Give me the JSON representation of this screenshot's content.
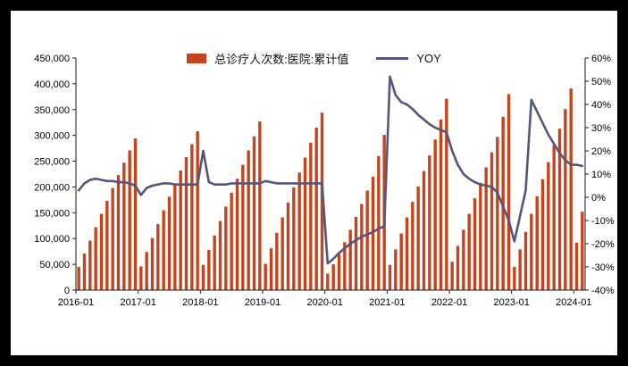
{
  "legend": {
    "bar_label": "总诊疗人次数:医院:累计值",
    "line_label": "YOY"
  },
  "colors": {
    "background": "#000000",
    "plot_background": "#FFFFFF",
    "bar": "#C5441D",
    "line": "#54567E",
    "axis": "#1A1A1A"
  },
  "chart_data": {
    "type": "bar+line dual-axis",
    "title": "",
    "grid": false,
    "legend_position": "top-center",
    "x_axis": {
      "tick_labels": [
        "2016-01",
        "2017-01",
        "2018-01",
        "2019-01",
        "2020-01",
        "2021-01",
        "2022-01",
        "2023-01",
        "2024-01"
      ]
    },
    "y_left": {
      "label": "总诊疗人次数:医院:累计值",
      "min": 0,
      "max": 450000,
      "tick_step": 50000,
      "tick_labels": [
        "450,000",
        "400,000",
        "350,000",
        "300,000",
        "250,000",
        "200,000",
        "150,000",
        "100,000",
        "50,000",
        "0"
      ]
    },
    "y_right": {
      "label": "YOY",
      "min": -40,
      "max": 60,
      "tick_step": 10,
      "tick_labels": [
        "60%",
        "50%",
        "40%",
        "30%",
        "20%",
        "10%",
        "0%",
        "-10%",
        "-20%",
        "-30%",
        "-40%"
      ]
    },
    "years": [
      {
        "year": "2016",
        "cumulative_visits": [
          45000,
          71000,
          96000,
          122000,
          148000,
          173000,
          198000,
          223000,
          247000,
          271000,
          294000
        ],
        "yoy_pct": [
          3,
          6,
          7.5,
          8,
          7.5,
          7,
          7,
          6.5,
          6.5,
          6,
          5
        ]
      },
      {
        "year": "2017",
        "cumulative_visits": [
          46000,
          74000,
          101000,
          128000,
          155000,
          181000,
          207000,
          232000,
          258000,
          283000,
          308000
        ],
        "yoy_pct": [
          1,
          4,
          5,
          5.5,
          6,
          6,
          5.5,
          5.5,
          5.5,
          5.5,
          5.5
        ]
      },
      {
        "year": "2018",
        "cumulative_visits": [
          49000,
          78000,
          106000,
          134000,
          162000,
          189000,
          216000,
          243000,
          271000,
          298000,
          327000
        ],
        "yoy_pct": [
          20,
          6.5,
          5.5,
          5.5,
          5.5,
          6,
          6,
          6,
          6,
          6,
          6
        ]
      },
      {
        "year": "2019",
        "cumulative_visits": [
          51000,
          81000,
          111000,
          141000,
          170000,
          199000,
          228000,
          257000,
          286000,
          315000,
          344000
        ],
        "yoy_pct": [
          7,
          6.5,
          6,
          6,
          6,
          6,
          6,
          6,
          6,
          6,
          6
        ]
      },
      {
        "year": "2020",
        "cumulative_visits": [
          32000,
          50000,
          70000,
          93000,
          117000,
          142000,
          167000,
          193000,
          220000,
          260000,
          301000
        ],
        "yoy_pct": [
          -28.5,
          -26.5,
          -24,
          -22,
          -20,
          -18.5,
          -17,
          -16,
          -15,
          -13.5,
          -12.5
        ]
      },
      {
        "year": "2021",
        "cumulative_visits": [
          49000,
          79000,
          110000,
          141000,
          171000,
          201000,
          231000,
          261000,
          292000,
          331000,
          371000
        ],
        "yoy_pct": [
          52,
          44,
          41,
          40,
          38,
          35.5,
          33.5,
          31.5,
          30,
          29,
          28
        ]
      },
      {
        "year": "2022",
        "cumulative_visits": [
          55000,
          86000,
          117000,
          148000,
          178000,
          208000,
          238000,
          267000,
          297000,
          336000,
          380000
        ],
        "yoy_pct": [
          20,
          14,
          10,
          8,
          6.5,
          5.5,
          5,
          4.5,
          2,
          -4,
          -10
        ]
      },
      {
        "year": "2023",
        "cumulative_visits": [
          45000,
          79000,
          113000,
          148000,
          182000,
          215000,
          248000,
          281000,
          313000,
          351000,
          391000
        ],
        "yoy_pct": [
          -19,
          -8,
          3,
          42,
          37,
          32,
          27,
          23,
          19,
          16,
          14
        ]
      },
      {
        "year": "2024",
        "cumulative_visits": [
          92000,
          152000
        ],
        "yoy_pct": [
          14,
          13.5
        ]
      }
    ]
  }
}
